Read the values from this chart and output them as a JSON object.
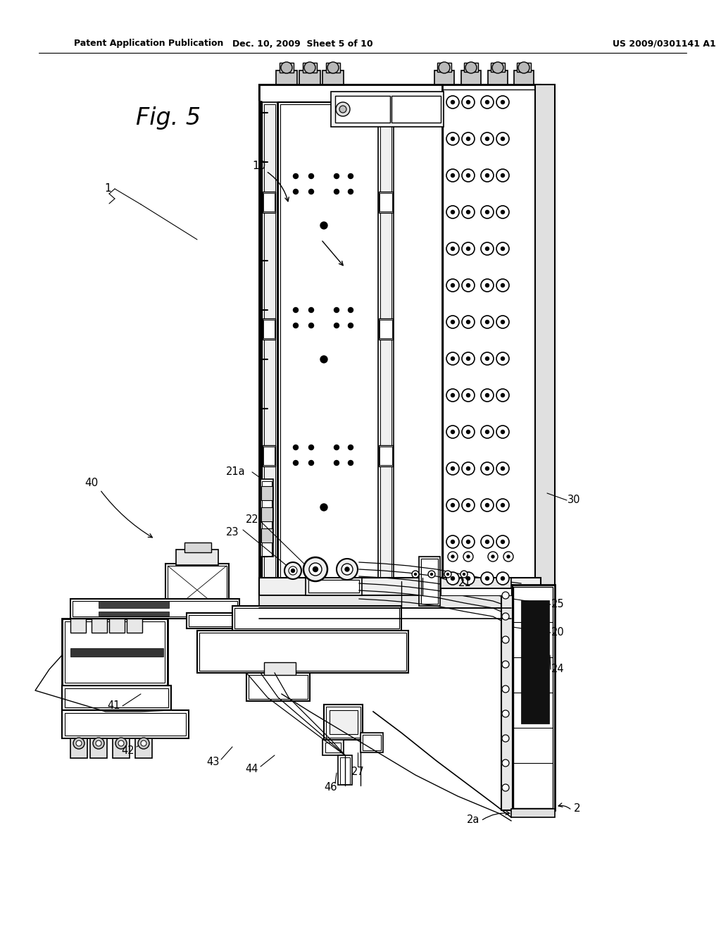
{
  "background_color": "#ffffff",
  "header_left": "Patent Application Publication",
  "header_mid": "Dec. 10, 2009  Sheet 5 of 10",
  "header_right": "US 2009/0301141 A1",
  "fig_label": "Fig. 5",
  "line_color": "#000000",
  "gray_light": "#d8d8d8",
  "gray_med": "#b0b0b0",
  "gray_dark": "#888888"
}
